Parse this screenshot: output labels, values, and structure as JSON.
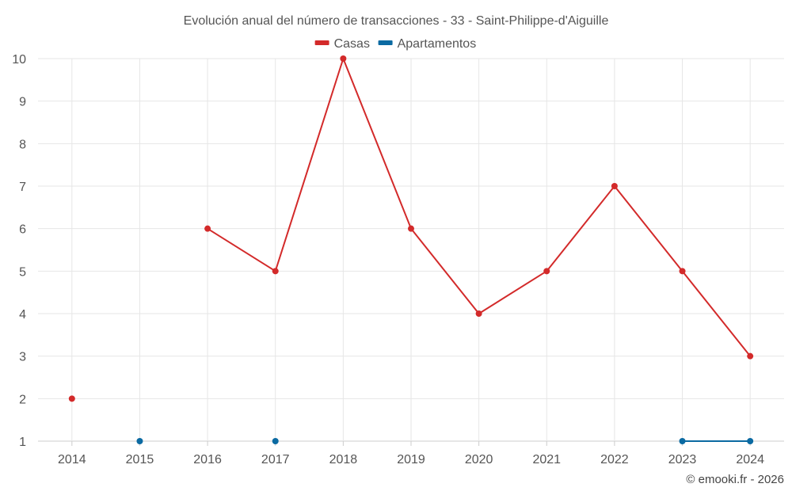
{
  "chart_data": {
    "type": "line",
    "title": "Evolución anual del número de transacciones - 33 - Saint-Philippe-d'Aiguille",
    "categories": [
      "2014",
      "2015",
      "2016",
      "2017",
      "2018",
      "2019",
      "2020",
      "2021",
      "2022",
      "2023",
      "2024"
    ],
    "series": [
      {
        "name": "Casas",
        "color": "#d32a2a",
        "values": [
          2,
          null,
          6,
          5,
          10,
          6,
          4,
          5,
          7,
          5,
          3
        ]
      },
      {
        "name": "Apartamentos",
        "color": "#0b6aa2",
        "values": [
          null,
          1,
          null,
          1,
          null,
          null,
          null,
          null,
          null,
          1,
          1
        ]
      }
    ],
    "ylim": [
      1,
      10
    ],
    "yticks": [
      "1",
      "2",
      "3",
      "4",
      "5",
      "6",
      "7",
      "8",
      "9",
      "10"
    ],
    "grid": true,
    "legend_position": "top-center"
  },
  "credit": "© emooki.fr - 2026"
}
